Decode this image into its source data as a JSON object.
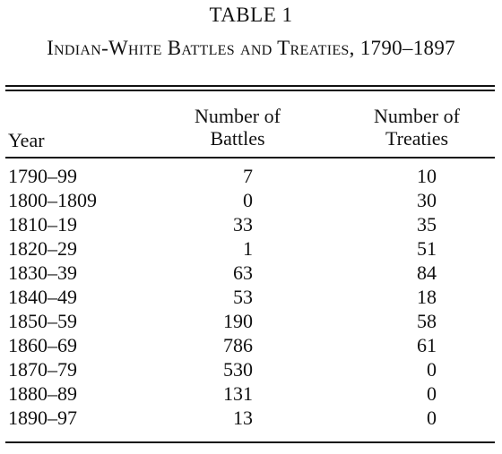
{
  "table_label": "TABLE 1",
  "title": "Indian-White Battles and Treaties, 1790–1897",
  "columns": {
    "year": "Year",
    "battles_line1": "Number of",
    "battles_line2": "Battles",
    "treaties_line1": "Number of",
    "treaties_line2": "Treaties"
  },
  "rows": [
    {
      "year": "1790–99",
      "battles": "7",
      "treaties": "10"
    },
    {
      "year": "1800–1809",
      "battles": "0",
      "treaties": "30"
    },
    {
      "year": "1810–19",
      "battles": "33",
      "treaties": "35"
    },
    {
      "year": "1820–29",
      "battles": "1",
      "treaties": "51"
    },
    {
      "year": "1830–39",
      "battles": "63",
      "treaties": "84"
    },
    {
      "year": "1840–49",
      "battles": "53",
      "treaties": "18"
    },
    {
      "year": "1850–59",
      "battles": "190",
      "treaties": "58"
    },
    {
      "year": "1860–69",
      "battles": "786",
      "treaties": "61"
    },
    {
      "year": "1870–79",
      "battles": "530",
      "treaties": "0"
    },
    {
      "year": "1880–89",
      "battles": "131",
      "treaties": "0"
    },
    {
      "year": "1890–97",
      "battles": "13",
      "treaties": "0"
    }
  ]
}
